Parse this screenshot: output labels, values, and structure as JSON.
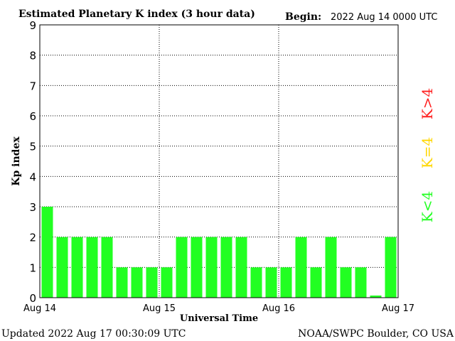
{
  "chart_data": {
    "type": "bar",
    "title": "Estimated Planetary K index (3 hour data)",
    "begin_label": "Begin:",
    "begin_value": "2022 Aug 14 0000 UTC",
    "xlabel": "Universal Time",
    "ylabel": "Kp index",
    "ylim": [
      0,
      9
    ],
    "yticks": [
      "0",
      "1",
      "2",
      "3",
      "4",
      "5",
      "6",
      "7",
      "8",
      "9"
    ],
    "xtick_labels": [
      "Aug 14",
      "Aug 15",
      "Aug 16",
      "Aug 17"
    ],
    "values": [
      3,
      2,
      2,
      2,
      2,
      1,
      1,
      1,
      1,
      2,
      2,
      2,
      2,
      2,
      1,
      1,
      1,
      2,
      1,
      2,
      1,
      1,
      0.07,
      2
    ],
    "bar_color": "#22ff22",
    "grid": true,
    "legend": [
      {
        "label": "K<4",
        "color": "#22ff22"
      },
      {
        "label": "K=4",
        "color": "#ffd700"
      },
      {
        "label": "K>4",
        "color": "#ff2020"
      }
    ]
  },
  "footer": {
    "updated": "Updated 2022 Aug 17 00:30:09 UTC",
    "source": "NOAA/SWPC Boulder, CO USA"
  }
}
